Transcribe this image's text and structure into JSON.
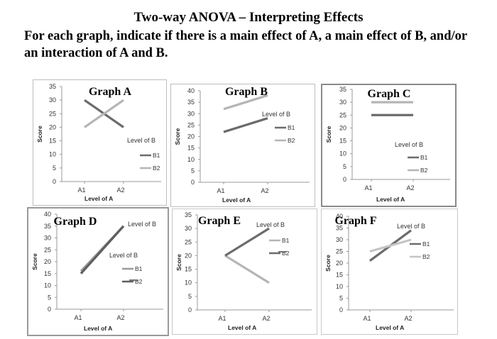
{
  "slide": {
    "title": "Two-way ANOVA – Interpreting Effects",
    "subtitle": "For each graph, indicate if there is a main effect of A, a main effect of B, and/or an interaction of A and B."
  },
  "chart_data": [
    {
      "id": "A",
      "type": "line",
      "title": "Graph  A",
      "xlabel": "Level of A",
      "ylabel": "Score",
      "categories": [
        "A1",
        "A2"
      ],
      "ylim": [
        0,
        35
      ],
      "yticks": [
        0,
        5,
        10,
        15,
        20,
        25,
        30,
        35
      ],
      "legend_title": "Level of B",
      "series": [
        {
          "name": "B1",
          "values": [
            30,
            20
          ],
          "color": "#6b6b6b"
        },
        {
          "name": "B2",
          "values": [
            20,
            30
          ],
          "color": "#b5b5b5"
        }
      ]
    },
    {
      "id": "B",
      "type": "line",
      "title": "Graph  B",
      "xlabel": "Level of A",
      "ylabel": "Score",
      "categories": [
        "A1",
        "A2"
      ],
      "ylim": [
        0,
        40
      ],
      "yticks": [
        0,
        5,
        10,
        15,
        20,
        25,
        30,
        35,
        40
      ],
      "legend_title": "Level of B",
      "series": [
        {
          "name": "B1",
          "values": [
            22,
            28
          ],
          "color": "#6b6b6b"
        },
        {
          "name": "B2",
          "values": [
            32,
            38
          ],
          "color": "#b5b5b5"
        }
      ]
    },
    {
      "id": "C",
      "type": "line",
      "title": "Graph  C",
      "xlabel": "Level of A",
      "ylabel": "Score",
      "categories": [
        "A1",
        "A2"
      ],
      "ylim": [
        0,
        35
      ],
      "yticks": [
        0,
        5,
        10,
        15,
        20,
        25,
        30,
        35
      ],
      "legend_title": "Level of B",
      "series": [
        {
          "name": "B1",
          "values": [
            25,
            25
          ],
          "color": "#6b6b6b"
        },
        {
          "name": "B2",
          "values": [
            30,
            30
          ],
          "color": "#b5b5b5"
        }
      ]
    },
    {
      "id": "D",
      "type": "line",
      "title": "Graph  D",
      "xlabel": "Level of A",
      "ylabel": "Score",
      "categories": [
        "A1",
        "A2"
      ],
      "ylim": [
        0,
        40
      ],
      "yticks": [
        0,
        5,
        10,
        15,
        20,
        25,
        30,
        35,
        40
      ],
      "legend_title": "Level of B",
      "extra_label": "Level of B",
      "series": [
        {
          "name": "B1",
          "values": [
            16,
            35
          ],
          "color": "#9a9a9a"
        },
        {
          "name": "B2",
          "values": [
            15,
            35
          ],
          "color": "#5f5f5f"
        }
      ]
    },
    {
      "id": "E",
      "type": "line",
      "title": "Graph  E",
      "xlabel": "Level of A",
      "ylabel": "Score",
      "categories": [
        "A1",
        "A2"
      ],
      "ylim": [
        0,
        35
      ],
      "yticks": [
        0,
        5,
        10,
        15,
        20,
        25,
        30,
        35
      ],
      "legend_title": "Level of B",
      "series": [
        {
          "name": "B1",
          "values": [
            20,
            10
          ],
          "color": "#b5b5b5"
        },
        {
          "name": "B2",
          "values": [
            20,
            30
          ],
          "color": "#6b6b6b"
        }
      ]
    },
    {
      "id": "F",
      "type": "line",
      "title": "Graph  F",
      "xlabel": "Level of A",
      "ylabel": "Score",
      "categories": [
        "A1",
        "A2"
      ],
      "ylim": [
        0,
        40
      ],
      "yticks": [
        0,
        5,
        10,
        15,
        20,
        25,
        30,
        35,
        40
      ],
      "legend_title": "Level of B",
      "series": [
        {
          "name": "B1",
          "values": [
            21,
            34
          ],
          "color": "#6b6b6b"
        },
        {
          "name": "B2",
          "values": [
            25,
            30
          ],
          "color": "#c4c4c4"
        }
      ]
    }
  ]
}
